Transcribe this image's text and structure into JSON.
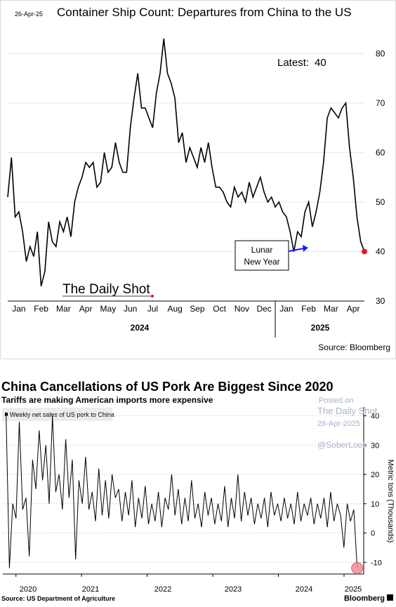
{
  "charts": {
    "top": {
      "date_stamp": "26-Apr-25",
      "title": "Container Ship Count: Departures from China to the US",
      "latest_label": "Latest:",
      "latest_value": "40",
      "annotation": [
        "Lunar",
        "New Year"
      ],
      "brand": "The Daily Shot",
      "source": "Source: Bloomberg",
      "months": [
        "Jan",
        "Feb",
        "Mar",
        "Apr",
        "May",
        "Jun",
        "Jul",
        "Aug",
        "Sep",
        "Oct",
        "Nov",
        "Dec",
        "Jan",
        "Feb",
        "Mar",
        "Apr"
      ],
      "years": [
        "2024",
        "2025"
      ],
      "yticks": [
        "30",
        "40",
        "50",
        "60",
        "70",
        "80"
      ]
    },
    "bottom": {
      "title": "China Cancellations of US Pork Are Biggest Since 2020",
      "subtitle": "Tariffs are making American imports more expensive",
      "legend": "Weekly net sales of US pork to China",
      "watermark": [
        "Posted on",
        "The Daily Shot",
        "28-Apr-2025",
        "@SoberLook"
      ],
      "ylabel": "Metric tons (Thousands)",
      "years": [
        "2020",
        "2021",
        "2022",
        "2023",
        "2024",
        "2025"
      ],
      "yticks": [
        "-10",
        "0",
        "10",
        "20",
        "30",
        "40"
      ],
      "source": "Source:  US Department of Agriculture",
      "brand": "Bloomberg"
    }
  },
  "chart_data": [
    {
      "type": "line",
      "title": "Container Ship Count: Departures from China to the US",
      "ylim": [
        30,
        85
      ],
      "x_unit": "weeks since 1-Jan-2024",
      "series": [
        {
          "name": "Container ship departures",
          "color": "#000000",
          "values": [
            51,
            59,
            47,
            48,
            44,
            38,
            41,
            39,
            44,
            33,
            36,
            46,
            42,
            41,
            46,
            44,
            47,
            43,
            50,
            53,
            55,
            58,
            57,
            58,
            53,
            54,
            60,
            56,
            57,
            62,
            58,
            56,
            56,
            65,
            71,
            76,
            69,
            69,
            67,
            65,
            72,
            76,
            83,
            76,
            74,
            71,
            62,
            64,
            58,
            61,
            59,
            57,
            61,
            58,
            62,
            57,
            53,
            53,
            52,
            50,
            49,
            53,
            51,
            52,
            50,
            54,
            51,
            53,
            55,
            52,
            50,
            51,
            49,
            50,
            48,
            47,
            44,
            40,
            44,
            43,
            48,
            50,
            45,
            48,
            52,
            58,
            67,
            69,
            68,
            67,
            69,
            70,
            61,
            55,
            47,
            42,
            40
          ]
        }
      ],
      "latest": 40,
      "annotations": [
        {
          "text": "Lunar New Year",
          "x": "2025-02"
        }
      ]
    },
    {
      "type": "line",
      "title": "China Cancellations of US Pork Are Biggest Since 2020",
      "ylabel": "Metric tons (Thousands)",
      "ylim": [
        -14,
        43
      ],
      "x_range": [
        2019.8,
        2025.3
      ],
      "series": [
        {
          "name": "Weekly net sales of US pork to China",
          "color": "#000000",
          "values": [
            40,
            -12,
            10,
            5,
            38,
            8,
            12,
            -8,
            25,
            15,
            35,
            18,
            30,
            10,
            40,
            14,
            20,
            8,
            32,
            12,
            25,
            -9,
            18,
            10,
            26,
            8,
            14,
            4,
            22,
            6,
            18,
            5,
            20,
            12,
            15,
            4,
            14,
            6,
            18,
            2,
            12,
            5,
            16,
            3,
            10,
            4,
            14,
            2,
            12,
            8,
            20,
            6,
            15,
            3,
            12,
            4,
            18,
            5,
            10,
            2,
            14,
            6,
            12,
            3,
            10,
            4,
            16,
            2,
            12,
            5,
            20,
            4,
            14,
            6,
            12,
            3,
            10,
            5,
            12,
            2,
            14,
            6,
            10,
            4,
            12,
            5,
            10,
            3,
            14,
            4,
            10,
            6,
            12,
            3,
            10,
            5,
            12,
            2,
            14,
            4,
            10,
            6,
            -5,
            10,
            4,
            8,
            -12
          ]
        }
      ],
      "latest": -12
    }
  ]
}
